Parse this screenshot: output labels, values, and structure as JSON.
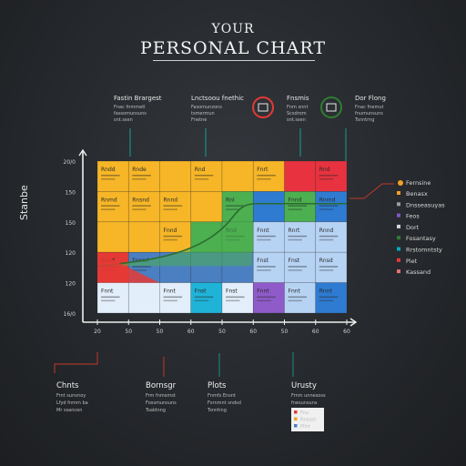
{
  "title_top": "YOUR",
  "title_main": "PERSONAL CHART",
  "y_axis_label": "Stanbe",
  "top_labels": [
    {
      "title": "Fastin Brargest",
      "sub": [
        "Fnac fnmmetl",
        "fassomunsuns",
        "snt.ssen"
      ]
    },
    {
      "title": "Lnctsoou fnethic",
      "sub": [
        "Fasomunzons",
        "tsmermun",
        "Fnetne"
      ]
    },
    {
      "title": "Fnsmis",
      "sub": [
        "Fnm snnt",
        "Scsdrom",
        "snt.ssen"
      ]
    },
    {
      "title": "Dor Flong",
      "sub": [
        "Fnac fnemut",
        "fnumunsuns",
        "Tsnntrng"
      ]
    }
  ],
  "legend_title": "Fernsine",
  "legend_items": [
    "Benasx",
    "Dnsseasuyas",
    "Feos",
    "Dort",
    "Fosantasy",
    "Rrstomntsty",
    "Piet",
    "Kassand"
  ],
  "legend_colors": [
    "#f2a024",
    "#9e9e9e",
    "#7e57c2",
    "#cfd8dc",
    "#2e7d32",
    "#00acc1",
    "#e53935",
    "#e57373"
  ],
  "bottom_labels": [
    {
      "title": "Chnts",
      "sub": [
        "Frnt sunvnoy",
        "Lfyd fnmm ba",
        "Mr ssancen"
      ]
    },
    {
      "title": "Bornsgr",
      "sub": [
        "Frm fnmsmst",
        "Fossmunsuns",
        "Tsaldnng"
      ]
    },
    {
      "title": "Plots",
      "sub": [
        "Fnmfs Ensnt",
        "Fsrnmnt sndsd",
        "Tsnnting"
      ]
    },
    {
      "title": "Urusty",
      "sub": [
        "Frnm unnesoss",
        "fnesunsuns"
      ]
    }
  ],
  "box_legend": [
    "Fnu",
    "Rnaast",
    "Pllnt"
  ],
  "chart_data": {
    "type": "heatmap",
    "title": "PERSONAL CHART",
    "ylabel": "Stanbe",
    "y_ticks": [
      "20/0",
      "150",
      "150",
      "120",
      "120",
      "16/0"
    ],
    "x_ticks": [
      "20",
      "50",
      "50",
      "60",
      "50",
      "60",
      "50",
      "60",
      "60"
    ],
    "rows": [
      {
        "colors": [
          "#f6b627",
          "#f6b627",
          "#f6b627",
          "#f6b627",
          "#f6b627",
          "#f6b627",
          "#e8323f",
          "#e8323f"
        ],
        "labels": [
          "Rndd",
          "Rnde",
          "",
          "Rnd",
          "",
          "Fnrt",
          "",
          "Rnd"
        ]
      },
      {
        "colors": [
          "#f6b627",
          "#f6b627",
          "#f6b627",
          "#f6b627",
          "#4caf50",
          "#2e7bd1",
          "#4caf50",
          "#2e7bd1"
        ],
        "labels": [
          "Rnmd",
          "Rnsnd",
          "Rnnd",
          "",
          "Rnl",
          "",
          "Fnnd",
          "Rnmd"
        ]
      },
      {
        "colors": [
          "#f6b627",
          "#f6b627",
          "#f6b627",
          "#4caf50",
          "#4caf50",
          "#b7d3f4",
          "#b7d3f4",
          "#b7d3f4"
        ],
        "labels": [
          "",
          "",
          "Fnnd",
          "",
          "Rnd",
          "Fnnt",
          "Rnrt",
          "Rnnd"
        ]
      },
      {
        "colors": [
          "#e53935",
          "#4a7fc1",
          "#4a7fc1",
          "#4a7fc1",
          "#4a7fc1",
          "#b7d3f4",
          "#b7d3f4",
          "#b7d3f4"
        ],
        "labels": [
          "Rnsd",
          "Fnnsd",
          "",
          "",
          "",
          "Fnst",
          "Fnst",
          "Rnsd"
        ]
      },
      {
        "colors": [
          "#e3eefb",
          "#e3eefb",
          "#e3eefb",
          "#1fb3d8",
          "#e3eefb",
          "#8e5bc8",
          "#b7d3f4",
          "#2e7bd1"
        ],
        "labels": [
          "Fnnt",
          "",
          "Fnnt",
          "Fnst",
          "Fnst",
          "Fnnt",
          "Fnnt",
          "Rnnt"
        ]
      }
    ]
  }
}
